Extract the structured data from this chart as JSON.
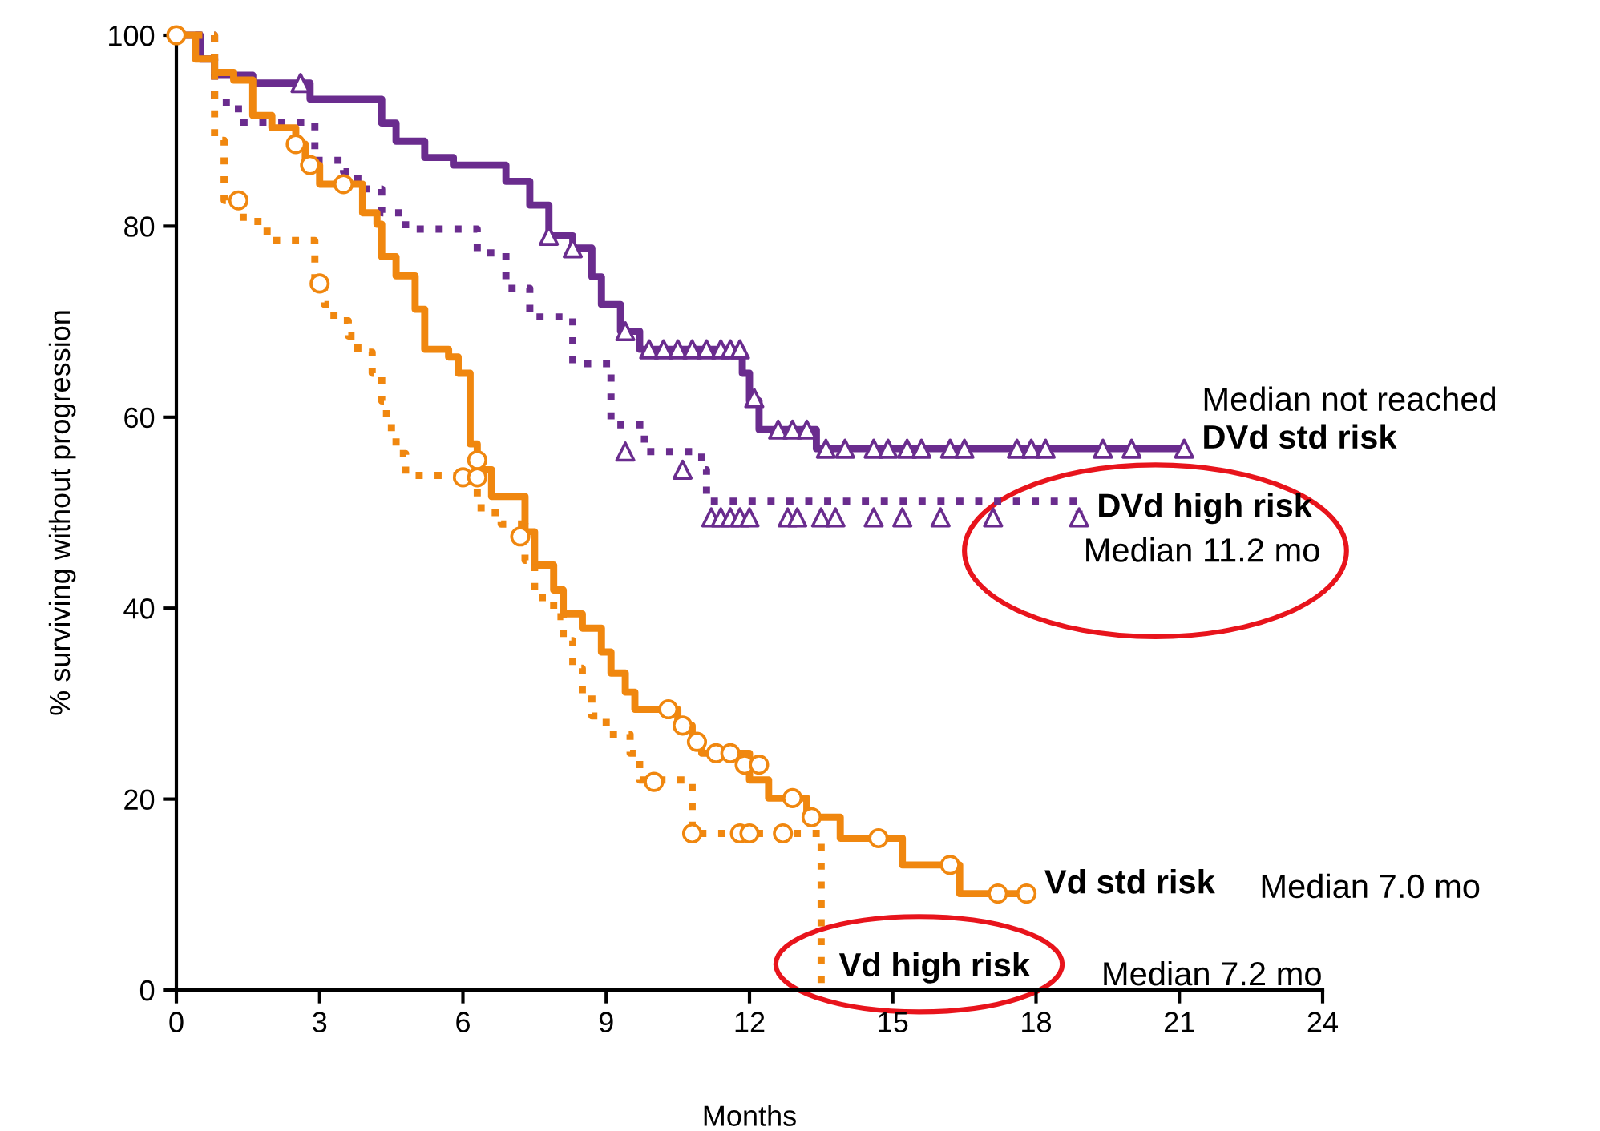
{
  "chart_data": {
    "type": "step",
    "xlabel": "Months",
    "ylabel": "% surviving without progression",
    "xlim": [
      0,
      24
    ],
    "ylim": [
      0,
      100
    ],
    "xticks": [
      0,
      3,
      6,
      9,
      12,
      15,
      18,
      21,
      24
    ],
    "yticks": [
      0,
      20,
      40,
      60,
      80,
      100
    ],
    "grid": false,
    "legend": false,
    "series": [
      {
        "name": "DVd std risk",
        "color": "#6a2c8e",
        "line_style": "solid",
        "x": [
          0,
          0.5,
          0.8,
          1.6,
          2.8,
          4.3,
          4.6,
          5.2,
          5.8,
          6.9,
          7.4,
          7.8,
          8.3,
          8.7,
          8.9,
          9.3,
          9.7,
          11.85,
          12.0,
          12.2,
          13.4,
          21.1
        ],
        "values": [
          100,
          97.5,
          95.8,
          95,
          93.3,
          90.8,
          88.9,
          87.2,
          86.4,
          84.7,
          82.2,
          79,
          77.7,
          74.7,
          71.8,
          69,
          67.1,
          64.6,
          61.7,
          58.7,
          56.7,
          56.7
        ]
      },
      {
        "name": "DVd high risk",
        "color": "#6a2c8e",
        "line_style": "dotted",
        "x": [
          0,
          0.8,
          1.3,
          2.9,
          3.5,
          3.8,
          4.3,
          4.8,
          6.3,
          6.9,
          7.4,
          8.3,
          9.1,
          9.8,
          11.0,
          11.1,
          18.9
        ],
        "values": [
          100,
          93,
          90.9,
          86.9,
          85.7,
          83.9,
          81.4,
          79.7,
          77.2,
          73.5,
          70.5,
          65.6,
          59.2,
          56.4,
          54.5,
          51.2,
          49.5
        ]
      },
      {
        "name": "Vd std risk",
        "color": "#f0870f",
        "line_style": "solid",
        "x": [
          0,
          0.4,
          0.8,
          1.2,
          1.6,
          2.0,
          2.5,
          2.7,
          3.0,
          3.9,
          4.2,
          4.3,
          4.6,
          5.0,
          5.2,
          5.7,
          5.9,
          6.15,
          6.3,
          6.6,
          7.3,
          7.5,
          7.9,
          8.1,
          8.5,
          8.9,
          9.1,
          9.4,
          9.6,
          10.5,
          10.8,
          11.0,
          12.0,
          12.4,
          13.2,
          13.9,
          15.2,
          16.4,
          17.8
        ],
        "values": [
          100,
          97.5,
          96.1,
          95.3,
          91.6,
          90.3,
          88.6,
          86.4,
          84.4,
          81.4,
          80.2,
          76.8,
          74.8,
          71.3,
          67.1,
          66.3,
          64.6,
          57.2,
          54.5,
          51.7,
          48,
          44.5,
          41.9,
          39.4,
          37.9,
          35.4,
          33.2,
          31.2,
          29.4,
          27.7,
          26,
          24.8,
          22,
          20.1,
          18.1,
          15.9,
          13.1,
          10.1,
          10.1
        ]
      },
      {
        "name": "Vd high risk",
        "color": "#f0870f",
        "line_style": "dotted",
        "x": [
          0,
          0.8,
          1.0,
          1.4,
          1.9,
          2.9,
          3.1,
          3.3,
          3.6,
          3.8,
          4.1,
          4.3,
          4.4,
          4.6,
          4.8,
          6.3,
          6.6,
          6.8,
          7.3,
          7.5,
          7.9,
          8.1,
          8.3,
          8.5,
          8.7,
          9.0,
          9.5,
          9.7,
          10.8,
          13.5,
          13.5
        ],
        "values": [
          100,
          89,
          82.7,
          80.5,
          78.5,
          74,
          71.8,
          70.1,
          68.5,
          66.8,
          64.6,
          61.7,
          58.9,
          56.2,
          53.9,
          50.5,
          50,
          48.8,
          45,
          41.1,
          39.1,
          36.6,
          33.7,
          31,
          28.7,
          26.8,
          24.8,
          22,
          16.4,
          16.4,
          0
        ]
      },
      {
        "type": "scatter",
        "marker": "triangle",
        "color": "#6a2c8e",
        "x": [
          2.6,
          7.8,
          8.3,
          9.4,
          9.9,
          10.2,
          10.5,
          10.8,
          11.1,
          11.4,
          11.6,
          11.8,
          12.1,
          12.6,
          12.9,
          13.2,
          13.6,
          14.0,
          14.6,
          14.9,
          15.3,
          15.6,
          16.2,
          16.5,
          17.6,
          17.9,
          18.2,
          19.4,
          20.0,
          21.1
        ],
        "values": [
          95,
          79,
          77.7,
          69,
          67.1,
          67.1,
          67.1,
          67.1,
          67.1,
          67.1,
          67.1,
          67.1,
          62,
          58.7,
          58.7,
          58.7,
          56.7,
          56.7,
          56.7,
          56.7,
          56.7,
          56.7,
          56.7,
          56.7,
          56.7,
          56.7,
          56.7,
          56.7,
          56.7,
          56.7
        ]
      },
      {
        "type": "scatter",
        "marker": "triangle",
        "color": "#6a2c8e",
        "x": [
          9.4,
          10.6,
          11.2,
          11.4,
          11.6,
          11.8,
          12.0,
          12.8,
          13.0,
          13.5,
          13.8,
          14.6,
          15.2,
          16.0,
          17.1,
          18.9
        ],
        "values": [
          56.4,
          54.5,
          49.5,
          49.5,
          49.5,
          49.5,
          49.5,
          49.5,
          49.5,
          49.5,
          49.5,
          49.5,
          49.5,
          49.5,
          49.5,
          49.5
        ]
      },
      {
        "type": "scatter",
        "marker": "circle",
        "color": "#f0870f",
        "x": [
          2.5,
          2.8,
          3.5,
          6.3,
          7.2,
          10.3,
          10.6,
          10.9,
          11.3,
          11.6,
          11.9,
          12.2,
          12.9,
          13.3,
          14.7,
          16.2,
          17.2,
          17.8
        ],
        "values": [
          88.6,
          86.4,
          84.4,
          55.5,
          47.5,
          29.4,
          27.7,
          26,
          24.8,
          24.8,
          23.6,
          23.6,
          20.1,
          18.1,
          15.9,
          13.1,
          10.1,
          10.1
        ]
      },
      {
        "type": "scatter",
        "marker": "circle",
        "color": "#f0870f",
        "x": [
          0,
          1.3,
          3.0,
          6.0,
          6.3,
          10.0,
          10.8,
          11.8,
          12.0,
          12.7
        ],
        "values": [
          100,
          82.7,
          74,
          53.7,
          53.7,
          21.8,
          16.4,
          16.4,
          16.4,
          16.4
        ]
      }
    ],
    "annotations": [
      "Median not reached",
      "Median 11.2 mo",
      "Median 7.0 mo",
      "Median 7.2 mo"
    ]
  }
}
